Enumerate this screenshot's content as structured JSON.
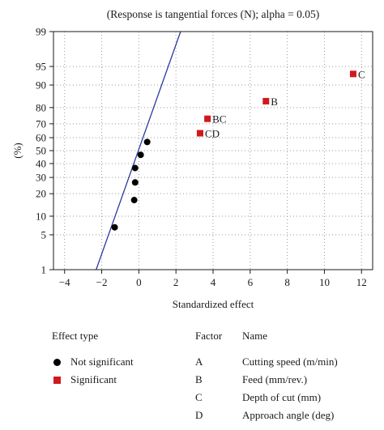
{
  "chart_data": {
    "type": "scatter",
    "title": "(Response is tangential forces (N); alpha = 0.05)",
    "xlabel": "Standardized effect",
    "ylabel": "(%)",
    "xlim": [
      -4.6,
      12.6
    ],
    "ylim": [
      1,
      99
    ],
    "yscale": "normal-probability",
    "grid": true,
    "x_ticks": [
      -4,
      -2,
      0,
      2,
      4,
      6,
      8,
      10,
      12
    ],
    "x_tick_labels": [
      "−4",
      "−2",
      "0",
      "2",
      "4",
      "6",
      "8",
      "10",
      "12"
    ],
    "y_ticks": [
      1,
      5,
      10,
      20,
      30,
      40,
      50,
      60,
      70,
      80,
      90,
      95,
      99
    ],
    "y_tick_labels": [
      "1",
      "5",
      "10",
      "20",
      "30",
      "40",
      "50",
      "60",
      "70",
      "80",
      "90",
      "95",
      "99"
    ],
    "reference_line": {
      "color": "#2a3aa0",
      "points": [
        [
          -2.3,
          1
        ],
        [
          2.25,
          99
        ]
      ]
    },
    "series": [
      {
        "name": "Not significant",
        "color": "#000000",
        "marker": "circle",
        "points": [
          {
            "x": -1.3,
            "y": 6.7,
            "label": ""
          },
          {
            "x": -0.25,
            "y": 16.7,
            "label": ""
          },
          {
            "x": -0.2,
            "y": 26.7,
            "label": ""
          },
          {
            "x": -0.2,
            "y": 36.7,
            "label": ""
          },
          {
            "x": 0.1,
            "y": 46.7,
            "label": ""
          },
          {
            "x": 0.45,
            "y": 56.7,
            "label": ""
          }
        ]
      },
      {
        "name": "Significant",
        "color": "#d0191f",
        "marker": "square",
        "points": [
          {
            "x": 3.3,
            "y": 63.3,
            "label": "CD"
          },
          {
            "x": 3.7,
            "y": 73.3,
            "label": "BC"
          },
          {
            "x": 6.85,
            "y": 83.3,
            "label": "B"
          },
          {
            "x": 11.55,
            "y": 93.3,
            "label": "C"
          }
        ]
      }
    ]
  },
  "legend": {
    "title": "Effect type",
    "items": [
      {
        "label": "Not significant",
        "marker": "circle",
        "color": "#000000"
      },
      {
        "label": "Significant",
        "marker": "square",
        "color": "#d0191f"
      }
    ]
  },
  "factors": {
    "header_factor": "Factor",
    "header_name": "Name",
    "rows": [
      {
        "factor": "A",
        "name": "Cutting speed (m/min)"
      },
      {
        "factor": "B",
        "name": "Feed (mm/rev.)"
      },
      {
        "factor": "C",
        "name": "Depth of cut (mm)"
      },
      {
        "factor": "D",
        "name": "Approach angle (deg)"
      }
    ]
  }
}
